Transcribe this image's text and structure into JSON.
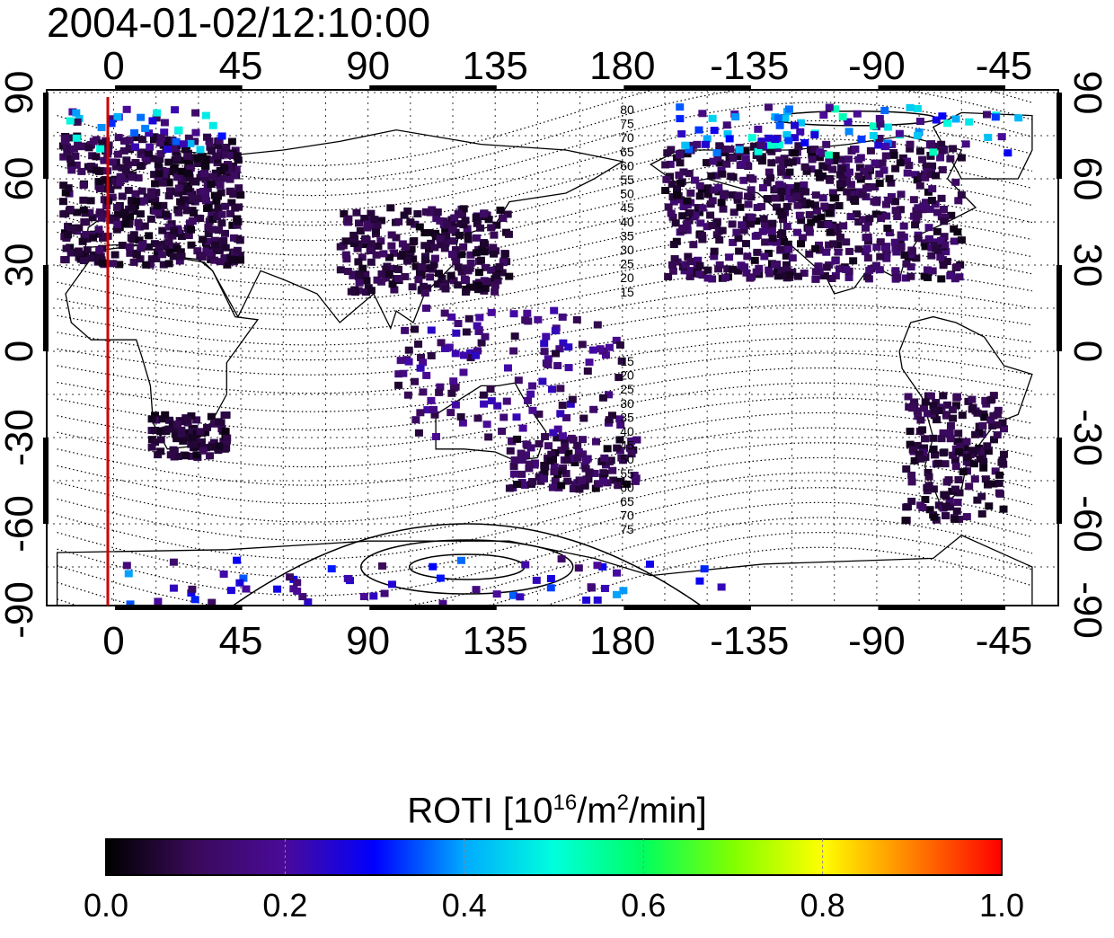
{
  "title": "2004-01-02/12:10:00",
  "map": {
    "x_ticks_top": [
      "0",
      "45",
      "90",
      "135",
      "180",
      "-135",
      "-90",
      "-45"
    ],
    "x_ticks_bottom": [
      "0",
      "45",
      "90",
      "135",
      "180",
      "-135",
      "-90",
      "-45"
    ],
    "y_ticks_left": [
      "90",
      "60",
      "30",
      "0",
      "-30",
      "-60",
      "-90"
    ],
    "y_ticks_right": [
      "90",
      "60",
      "30",
      "0",
      "-30",
      "-60",
      "-90"
    ],
    "contour_labels_north": [
      "80",
      "75",
      "70",
      "65",
      "60",
      "55",
      "50",
      "45",
      "40",
      "35",
      "30",
      "25",
      "20",
      "15"
    ],
    "contour_labels_south": [
      "15",
      "20",
      "25",
      "30",
      "35",
      "40",
      "45",
      "50",
      "55",
      "60",
      "65",
      "70",
      "75"
    ],
    "lon_range": [
      -20,
      325
    ],
    "lat_range": [
      -90,
      90
    ],
    "gridlines": true,
    "terminator_lon": -1,
    "terminator_color": "#cc0000"
  },
  "colorbar": {
    "label_main": "ROTI  [10",
    "label_exp1": "16",
    "label_mid": "/m",
    "label_exp2": "2",
    "label_end": "/min]",
    "ticks": [
      "0.0",
      "0.2",
      "0.4",
      "0.6",
      "0.8",
      "1.0"
    ],
    "range": [
      0.0,
      1.0
    ],
    "colormap": [
      "#000000",
      "#3a0a5a",
      "#4a0a9a",
      "#0000ff",
      "#00aaff",
      "#00ffdd",
      "#00ff60",
      "#80ff00",
      "#ffff00",
      "#ff8000",
      "#ff0000"
    ]
  }
}
